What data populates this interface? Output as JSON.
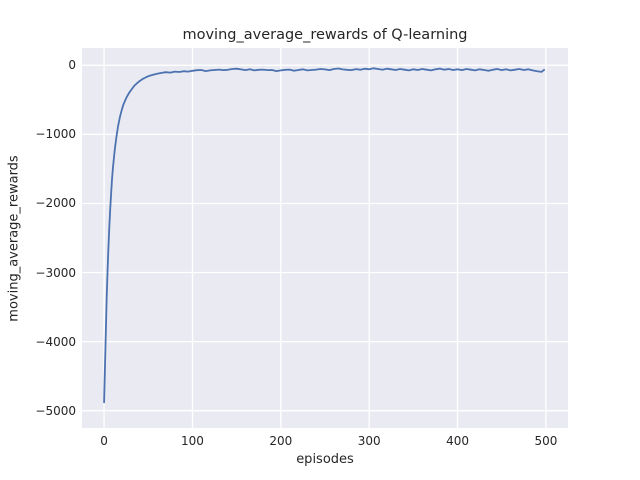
{
  "chart_data": {
    "type": "line",
    "title": "moving_average_rewards of Q-learning",
    "xlabel": "episodes",
    "ylabel": "moving_average_rewards",
    "xlim": [
      -25,
      525
    ],
    "ylim": [
      -5250,
      250
    ],
    "x_ticks": [
      0,
      100,
      200,
      300,
      400,
      500
    ],
    "y_ticks": [
      0,
      -1000,
      -2000,
      -3000,
      -4000,
      -5000
    ],
    "grid": true,
    "legend_position": "none",
    "colors": {
      "line": "#4c72b0",
      "plot_background": "#eaeaf2",
      "gridline": "#ffffff",
      "text": "#262626",
      "figure_background": "#ffffff"
    },
    "series": [
      {
        "name": "moving_average_rewards",
        "points": [
          [
            0,
            -4880
          ],
          [
            1,
            -4350
          ],
          [
            2,
            -3820
          ],
          [
            3,
            -3360
          ],
          [
            4,
            -2960
          ],
          [
            5,
            -2610
          ],
          [
            6,
            -2310
          ],
          [
            7,
            -2060
          ],
          [
            8,
            -1840
          ],
          [
            9,
            -1650
          ],
          [
            10,
            -1490
          ],
          [
            12,
            -1230
          ],
          [
            14,
            -1030
          ],
          [
            16,
            -870
          ],
          [
            18,
            -745
          ],
          [
            20,
            -645
          ],
          [
            22,
            -565
          ],
          [
            25,
            -475
          ],
          [
            28,
            -405
          ],
          [
            31,
            -350
          ],
          [
            34,
            -300
          ],
          [
            37,
            -262
          ],
          [
            40,
            -230
          ],
          [
            44,
            -196
          ],
          [
            48,
            -170
          ],
          [
            52,
            -150
          ],
          [
            56,
            -135
          ],
          [
            60,
            -122
          ],
          [
            65,
            -110
          ],
          [
            70,
            -100
          ],
          [
            75,
            -106
          ],
          [
            80,
            -92
          ],
          [
            85,
            -97
          ],
          [
            90,
            -86
          ],
          [
            95,
            -92
          ],
          [
            100,
            -80
          ],
          [
            105,
            -72
          ],
          [
            110,
            -68
          ],
          [
            115,
            -84
          ],
          [
            120,
            -74
          ],
          [
            125,
            -68
          ],
          [
            130,
            -62
          ],
          [
            135,
            -70
          ],
          [
            140,
            -66
          ],
          [
            145,
            -54
          ],
          [
            150,
            -50
          ],
          [
            155,
            -60
          ],
          [
            160,
            -70
          ],
          [
            165,
            -58
          ],
          [
            170,
            -74
          ],
          [
            175,
            -66
          ],
          [
            180,
            -62
          ],
          [
            185,
            -70
          ],
          [
            190,
            -68
          ],
          [
            195,
            -84
          ],
          [
            200,
            -74
          ],
          [
            205,
            -66
          ],
          [
            210,
            -62
          ],
          [
            215,
            -78
          ],
          [
            220,
            -68
          ],
          [
            225,
            -58
          ],
          [
            230,
            -74
          ],
          [
            235,
            -68
          ],
          [
            240,
            -62
          ],
          [
            245,
            -54
          ],
          [
            250,
            -60
          ],
          [
            255,
            -70
          ],
          [
            260,
            -54
          ],
          [
            265,
            -46
          ],
          [
            270,
            -60
          ],
          [
            275,
            -66
          ],
          [
            280,
            -70
          ],
          [
            285,
            -56
          ],
          [
            290,
            -64
          ],
          [
            295,
            -50
          ],
          [
            300,
            -58
          ],
          [
            305,
            -44
          ],
          [
            310,
            -54
          ],
          [
            315,
            -64
          ],
          [
            320,
            -50
          ],
          [
            325,
            -58
          ],
          [
            330,
            -68
          ],
          [
            335,
            -54
          ],
          [
            340,
            -64
          ],
          [
            345,
            -74
          ],
          [
            350,
            -58
          ],
          [
            355,
            -68
          ],
          [
            360,
            -54
          ],
          [
            365,
            -64
          ],
          [
            370,
            -74
          ],
          [
            375,
            -58
          ],
          [
            380,
            -48
          ],
          [
            385,
            -64
          ],
          [
            390,
            -54
          ],
          [
            395,
            -68
          ],
          [
            400,
            -58
          ],
          [
            405,
            -70
          ],
          [
            410,
            -54
          ],
          [
            415,
            -64
          ],
          [
            420,
            -74
          ],
          [
            425,
            -58
          ],
          [
            430,
            -68
          ],
          [
            435,
            -80
          ],
          [
            440,
            -64
          ],
          [
            445,
            -54
          ],
          [
            450,
            -70
          ],
          [
            455,
            -58
          ],
          [
            460,
            -74
          ],
          [
            465,
            -64
          ],
          [
            470,
            -54
          ],
          [
            475,
            -68
          ],
          [
            480,
            -58
          ],
          [
            485,
            -74
          ],
          [
            490,
            -86
          ],
          [
            495,
            -96
          ],
          [
            498,
            -66
          ]
        ]
      }
    ]
  }
}
